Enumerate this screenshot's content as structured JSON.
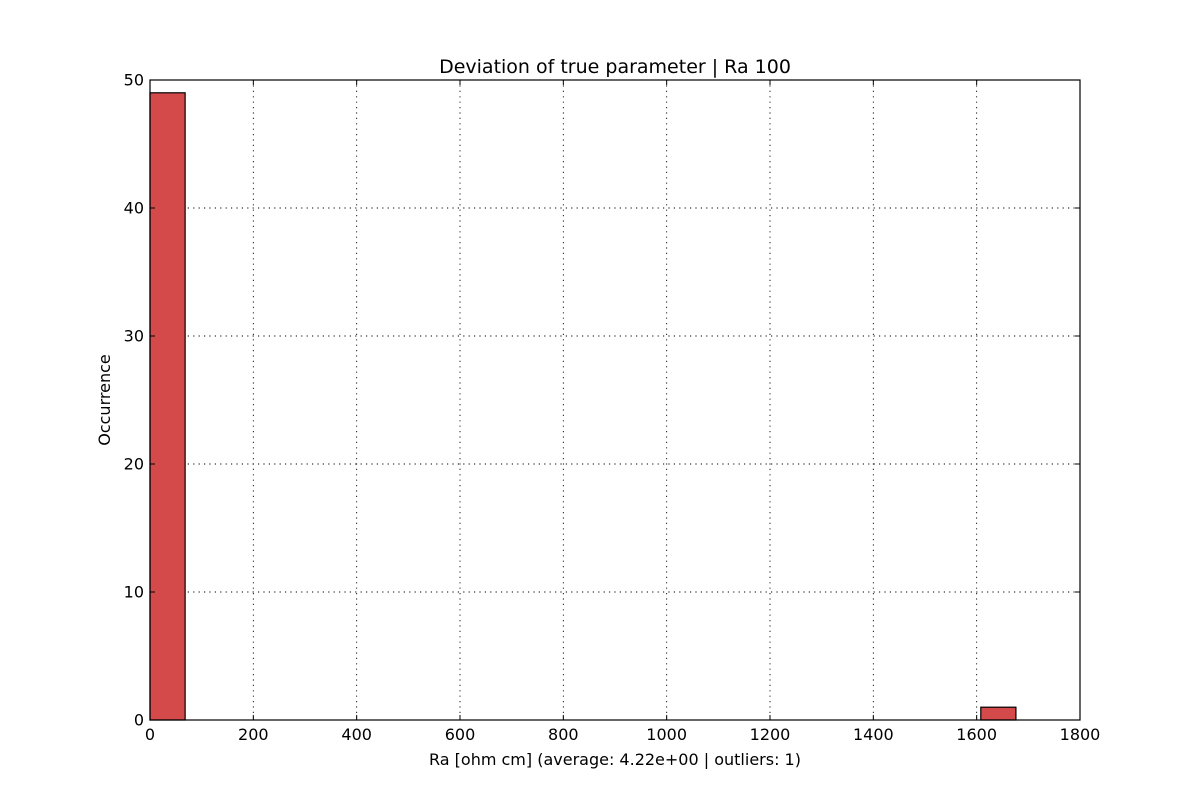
{
  "chart_data": {
    "type": "bar",
    "title": "Deviation of true parameter | Ra 100",
    "xlabel": "Ra [ohm cm] (average: 4.22e+00 | outliers: 1)",
    "ylabel": "Occurrence",
    "xlim": [
      0,
      1800
    ],
    "ylim": [
      0,
      50
    ],
    "xticks": [
      0,
      200,
      400,
      600,
      800,
      1000,
      1200,
      1400,
      1600,
      1800
    ],
    "yticks": [
      0,
      10,
      20,
      30,
      40,
      50
    ],
    "grid": true,
    "legend": "none",
    "bar_color": "#d44a4a",
    "bins": [
      {
        "start": 0,
        "end": 68,
        "count": 49
      },
      {
        "start": 1608,
        "end": 1676,
        "count": 1
      }
    ]
  }
}
